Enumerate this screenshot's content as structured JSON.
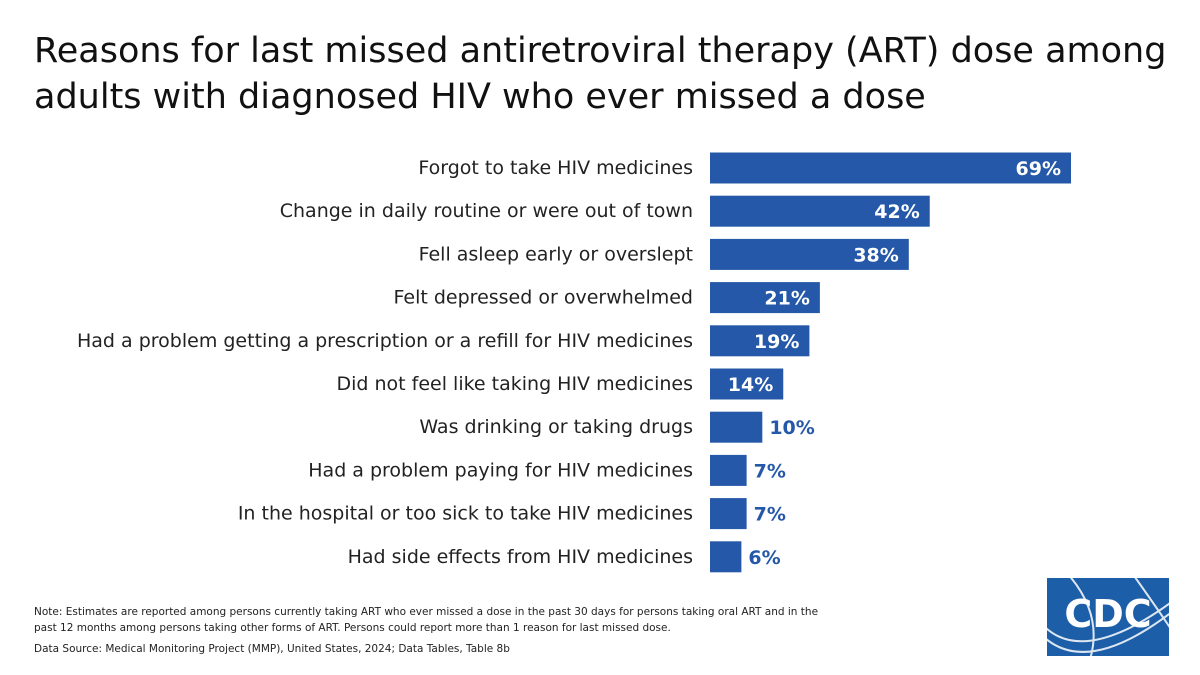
{
  "chart_data": {
    "type": "bar",
    "orientation": "horizontal",
    "title": "Reasons for last missed antiretroviral therapy (ART) dose among adults with diagnosed HIV who ever missed a dose",
    "categories": [
      "Forgot to take HIV medicines",
      "Change in daily routine or were out of town",
      "Fell asleep early or overslept",
      "Felt depressed or overwhelmed",
      "Had a problem getting a prescription or a refill for HIV medicines",
      "Did not feel like taking HIV medicines",
      "Was drinking or taking drugs",
      "Had a problem paying for HIV medicines",
      "In the hospital or too sick to take HIV medicines",
      "Had side effects from HIV medicines"
    ],
    "values": [
      69,
      42,
      38,
      21,
      19,
      14,
      10,
      7,
      7,
      6
    ],
    "value_labels": [
      "69%",
      "42%",
      "38%",
      "21%",
      "19%",
      "14%",
      "10%",
      "7%",
      "7%",
      "6%"
    ],
    "unit": "%",
    "xlim": [
      0,
      69
    ],
    "grid": false,
    "legend": "none",
    "bar_color": "#2558a8",
    "inside_label_color": "#ffffff",
    "outside_label_color": "#2558a8"
  },
  "footer": {
    "note": "Note:  Estimates are reported among persons currently taking ART who ever missed a dose in the past 30 days for persons taking oral ART and in the past 12 months among persons taking other forms of ART. Persons could report more than 1 reason for last missed dose.",
    "source": "Data Source: Medical Monitoring Project (MMP), United States, 2024; Data Tables, Table 8b"
  },
  "logo": {
    "text": "CDC",
    "icon": "cdc-logo-icon",
    "color": "#1c5ea8"
  }
}
